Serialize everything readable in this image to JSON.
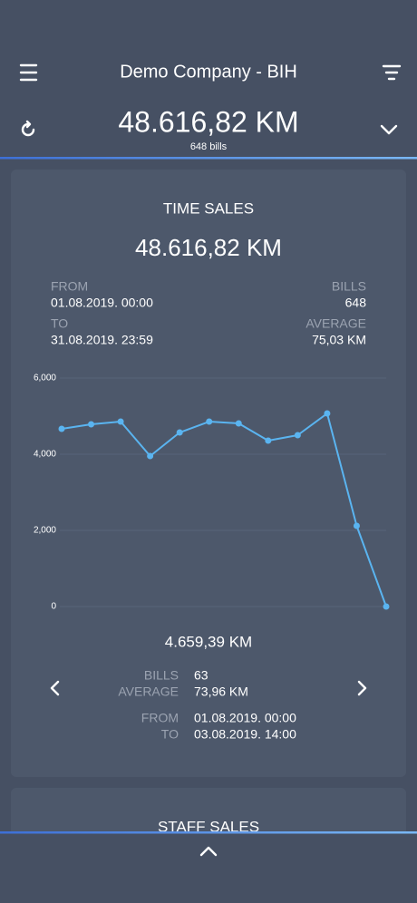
{
  "header": {
    "title": "Demo Company - BIH",
    "total": "48.616,82 KM",
    "bills": "648 bills"
  },
  "time_sales": {
    "title": "TIME SALES",
    "total": "48.616,82 KM",
    "from_label": "FROM",
    "from": "01.08.2019. 00:00",
    "bills_label": "BILLS",
    "bills": "648",
    "to_label": "TO",
    "to": "31.08.2019. 23:59",
    "average_label": "AVERAGE",
    "average": "75,03 KM",
    "chart_data": {
      "type": "line",
      "color": "#5ab4f0",
      "categories": [
        null,
        null,
        null,
        null,
        null,
        null,
        null,
        null,
        null,
        null,
        null,
        null
      ],
      "values": [
        4667,
        4786,
        4857,
        3952,
        4571,
        4857,
        4810,
        4357,
        4500,
        5071,
        2119,
        0
      ],
      "ylim": [
        0,
        6000
      ],
      "yticks": [
        0,
        {
          "value": 2000,
          "label": "2,000"
        },
        {
          "value": 4000,
          "label": "4,000"
        },
        {
          "value": 6000,
          "label": "6,000"
        }
      ],
      "grid": true
    },
    "selected": {
      "total": "4.659,39 KM",
      "bills_label": "BILLS",
      "bills": "63",
      "average_label": "AVERAGE",
      "average": "73,96 KM",
      "from_label": "FROM",
      "from": "01.08.2019. 00:00",
      "to_label": "TO",
      "to": "03.08.2019. 14:00"
    }
  },
  "staff_sales": {
    "title": "STAFF SALES"
  }
}
